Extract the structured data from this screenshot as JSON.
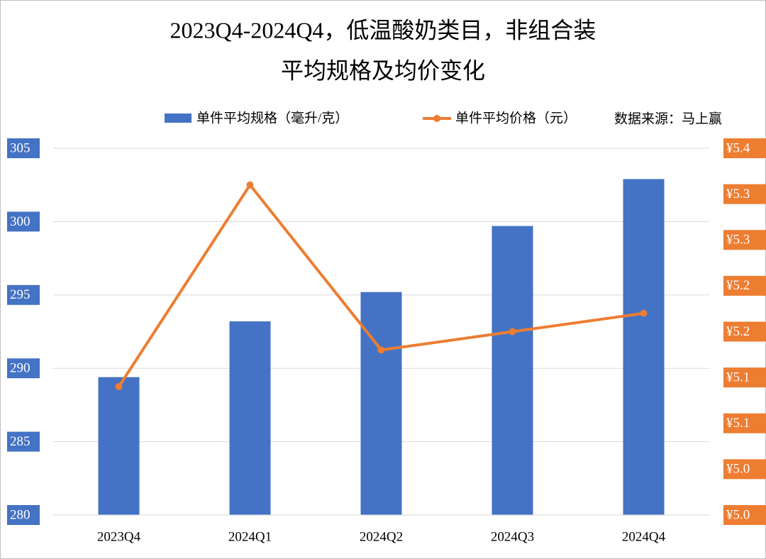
{
  "chart_data": {
    "type": "bar-line",
    "title": [
      "2023Q4-2024Q4，低温酸奶类目，非组合装",
      "平均规格及均价变化"
    ],
    "source": "数据来源：马上赢",
    "categories": [
      "2023Q4",
      "2024Q1",
      "2024Q2",
      "2024Q3",
      "2024Q4"
    ],
    "series": [
      {
        "name": "单件平均规格（毫升/克）",
        "type": "bar",
        "color": "#4472c4",
        "values": [
          289.4,
          293.2,
          295.2,
          299.7,
          302.9
        ]
      },
      {
        "name": "单件平均价格（元）",
        "type": "line",
        "axis": "y2",
        "color": "#ed7d31",
        "values": [
          5.14,
          5.36,
          5.18,
          5.2,
          5.22
        ]
      }
    ],
    "ylim": [
      280,
      305
    ],
    "yticks": [
      280,
      285,
      290,
      295,
      300,
      305
    ],
    "y2lim": [
      5.0,
      5.4
    ],
    "y2ticks": [
      {
        "value": 5.0,
        "label": "¥5.0"
      },
      {
        "value": 5.05,
        "label": "¥5.0"
      },
      {
        "value": 5.1,
        "label": "¥5.1"
      },
      {
        "value": 5.15,
        "label": "¥5.1"
      },
      {
        "value": 5.2,
        "label": "¥5.2"
      },
      {
        "value": 5.25,
        "label": "¥5.2"
      },
      {
        "value": 5.3,
        "label": "¥5.3"
      },
      {
        "value": 5.35,
        "label": "¥5.3"
      },
      {
        "value": 5.4,
        "label": "¥5.4"
      }
    ],
    "grid": true
  }
}
